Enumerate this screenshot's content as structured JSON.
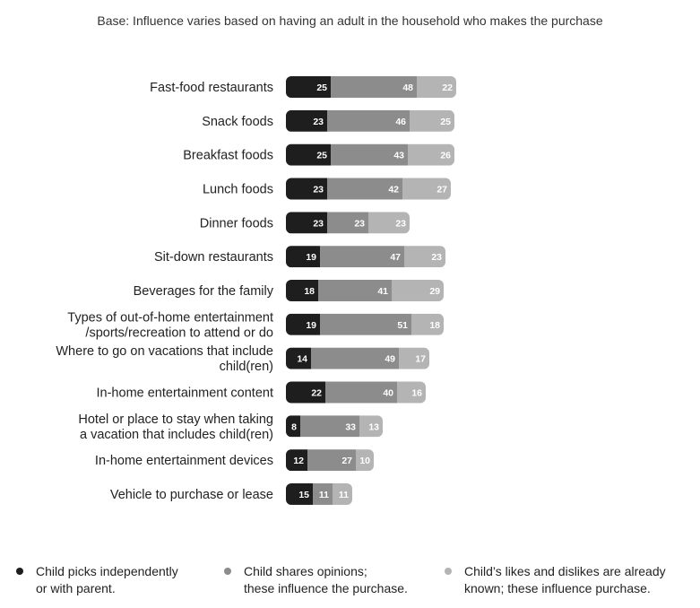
{
  "chart_data": {
    "type": "bar",
    "stacked": true,
    "orientation": "horizontal",
    "subtitle": "Base: Influence varies based on having an adult in the household who makes the purchase",
    "title": "",
    "xlabel": "",
    "ylabel": "",
    "categories": [
      [
        "Fast-food restaurants"
      ],
      [
        "Snack foods"
      ],
      [
        "Breakfast foods"
      ],
      [
        "Lunch foods"
      ],
      [
        "Dinner foods"
      ],
      [
        "Sit-down restaurants"
      ],
      [
        "Beverages for the family"
      ],
      [
        "Types of out-of-home entertainment",
        "/sports/recreation to attend or do"
      ],
      [
        "Where to go on vacations that include",
        "child(ren)"
      ],
      [
        "In-home entertainment content"
      ],
      [
        "Hotel or place to stay when taking",
        "a vacation that includes child(ren)"
      ],
      [
        "In-home entertainment devices"
      ],
      [
        "Vehicle to purchase or lease"
      ]
    ],
    "series": [
      {
        "name": "Child picks independently or with parent.",
        "color": "#1e1e1e",
        "values": [
          25,
          23,
          25,
          23,
          23,
          19,
          18,
          19,
          14,
          22,
          8,
          12,
          15
        ]
      },
      {
        "name": "Child shares opinions; these influence the purchase.",
        "color": "#8c8c8c",
        "values": [
          48,
          46,
          43,
          42,
          23,
          47,
          41,
          51,
          49,
          40,
          33,
          27,
          11
        ]
      },
      {
        "name": "Child's likes and dislikes are already known; these influence purchase.",
        "color": "#b4b4b4",
        "values": [
          22,
          25,
          26,
          27,
          23,
          23,
          29,
          18,
          17,
          16,
          13,
          10,
          11
        ]
      }
    ],
    "legend": {
      "position": "bottom",
      "items": [
        {
          "lines": [
            "Child picks independently",
            "or with parent."
          ],
          "color": "#1e1e1e"
        },
        {
          "lines": [
            "Child shares opinions;",
            "these influence the purchase."
          ],
          "color": "#8c8c8c"
        },
        {
          "lines": [
            "Child’s likes and dislikes are already",
            "known; these influence purchase."
          ],
          "color": "#b4b4b4"
        }
      ]
    },
    "grid": false
  }
}
